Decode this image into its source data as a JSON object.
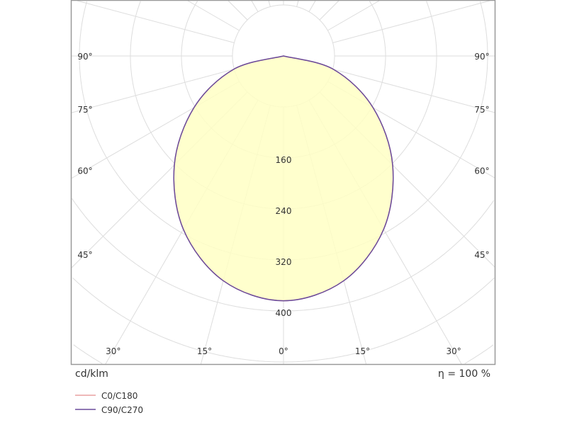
{
  "chart_data": {
    "type": "polar",
    "unit_label": "cd/klm",
    "efficiency_label": "η = 100 %",
    "radial_ticks": [
      80,
      160,
      240,
      320,
      400,
      480,
      560,
      640
    ],
    "radial_tick_labels": [
      "160",
      "240",
      "320",
      "400"
    ],
    "angle_ticks": [
      {
        "angle": -90,
        "label": "90°"
      },
      {
        "angle": -75,
        "label": "75°"
      },
      {
        "angle": -60,
        "label": "60°"
      },
      {
        "angle": -45,
        "label": "45°"
      },
      {
        "angle": -30,
        "label": "30°"
      },
      {
        "angle": -15,
        "label": "15°"
      },
      {
        "angle": 0,
        "label": "0°"
      },
      {
        "angle": 15,
        "label": "15°"
      },
      {
        "angle": 30,
        "label": "30°"
      },
      {
        "angle": 45,
        "label": "45°"
      },
      {
        "angle": 60,
        "label": "60°"
      },
      {
        "angle": 75,
        "label": "75°"
      },
      {
        "angle": 90,
        "label": "90°"
      }
    ],
    "angles": [
      0,
      15,
      30,
      45,
      60,
      75,
      90
    ],
    "series": [
      {
        "name": "C0/C180",
        "color": "#e8a0a0",
        "values": [
          384,
          365,
          314,
          242,
          162,
          81,
          0
        ]
      },
      {
        "name": "C90/C270",
        "color": "#6a4c9c",
        "values": [
          384,
          365,
          314,
          242,
          162,
          81,
          0
        ]
      }
    ],
    "fill_color": "#ffffc4",
    "grid": true,
    "legend_position": "bottom-left"
  }
}
